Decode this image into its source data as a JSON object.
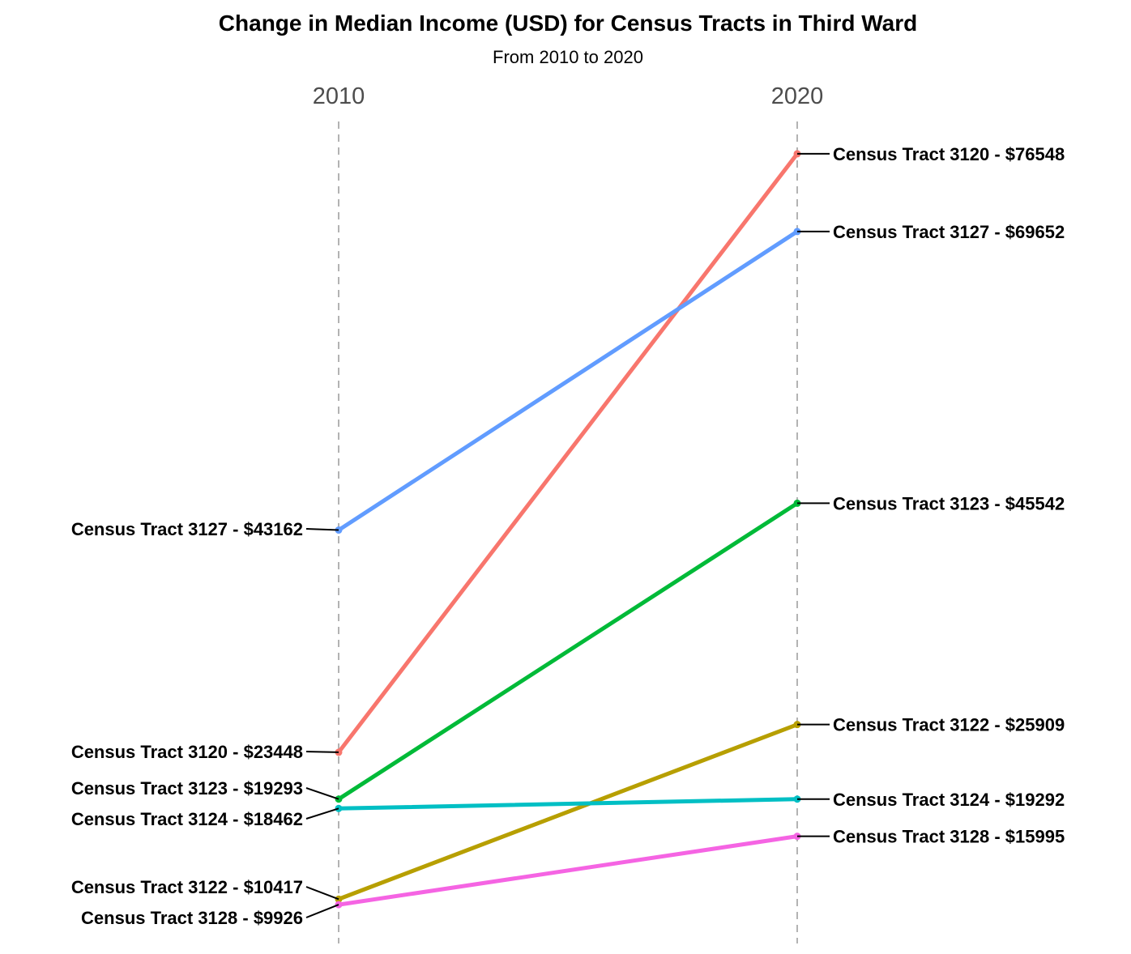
{
  "chart_data": {
    "type": "line",
    "title": "Change in Median Income (USD) for Census Tracts in Third Ward",
    "subtitle": "From 2010 to 2020",
    "x": [
      "2010",
      "2020"
    ],
    "grid": false,
    "x_gridlines": "dashed vertical at each year",
    "legend": "none (direct labels)",
    "series": [
      {
        "name": "Census Tract 3120",
        "values": [
          23448,
          76548
        ],
        "color": "#F8766D",
        "labels": [
          "Census Tract 3120 - $23448",
          "Census Tract 3120 - $76548"
        ]
      },
      {
        "name": "Census Tract 3127",
        "values": [
          43162,
          69652
        ],
        "color": "#619CFF",
        "labels": [
          "Census Tract 3127 - $43162",
          "Census Tract 3127 - $69652"
        ]
      },
      {
        "name": "Census Tract 3123",
        "values": [
          19293,
          45542
        ],
        "color": "#00BA38",
        "labels": [
          "Census Tract 3123 - $19293",
          "Census Tract 3123 - $45542"
        ]
      },
      {
        "name": "Census Tract 3122",
        "values": [
          10417,
          25909
        ],
        "color": "#B79F00",
        "labels": [
          "Census Tract 3122 - $10417",
          "Census Tract 3122 - $25909"
        ]
      },
      {
        "name": "Census Tract 3124",
        "values": [
          18462,
          19292
        ],
        "color": "#00BFC4",
        "labels": [
          "Census Tract 3124 - $18462",
          "Census Tract 3124 - $19292"
        ]
      },
      {
        "name": "Census Tract 3128",
        "values": [
          9926,
          15995
        ],
        "color": "#F564E3",
        "labels": [
          "Census Tract 3128 - $9926",
          "Census Tract 3128 - $15995"
        ]
      }
    ]
  }
}
